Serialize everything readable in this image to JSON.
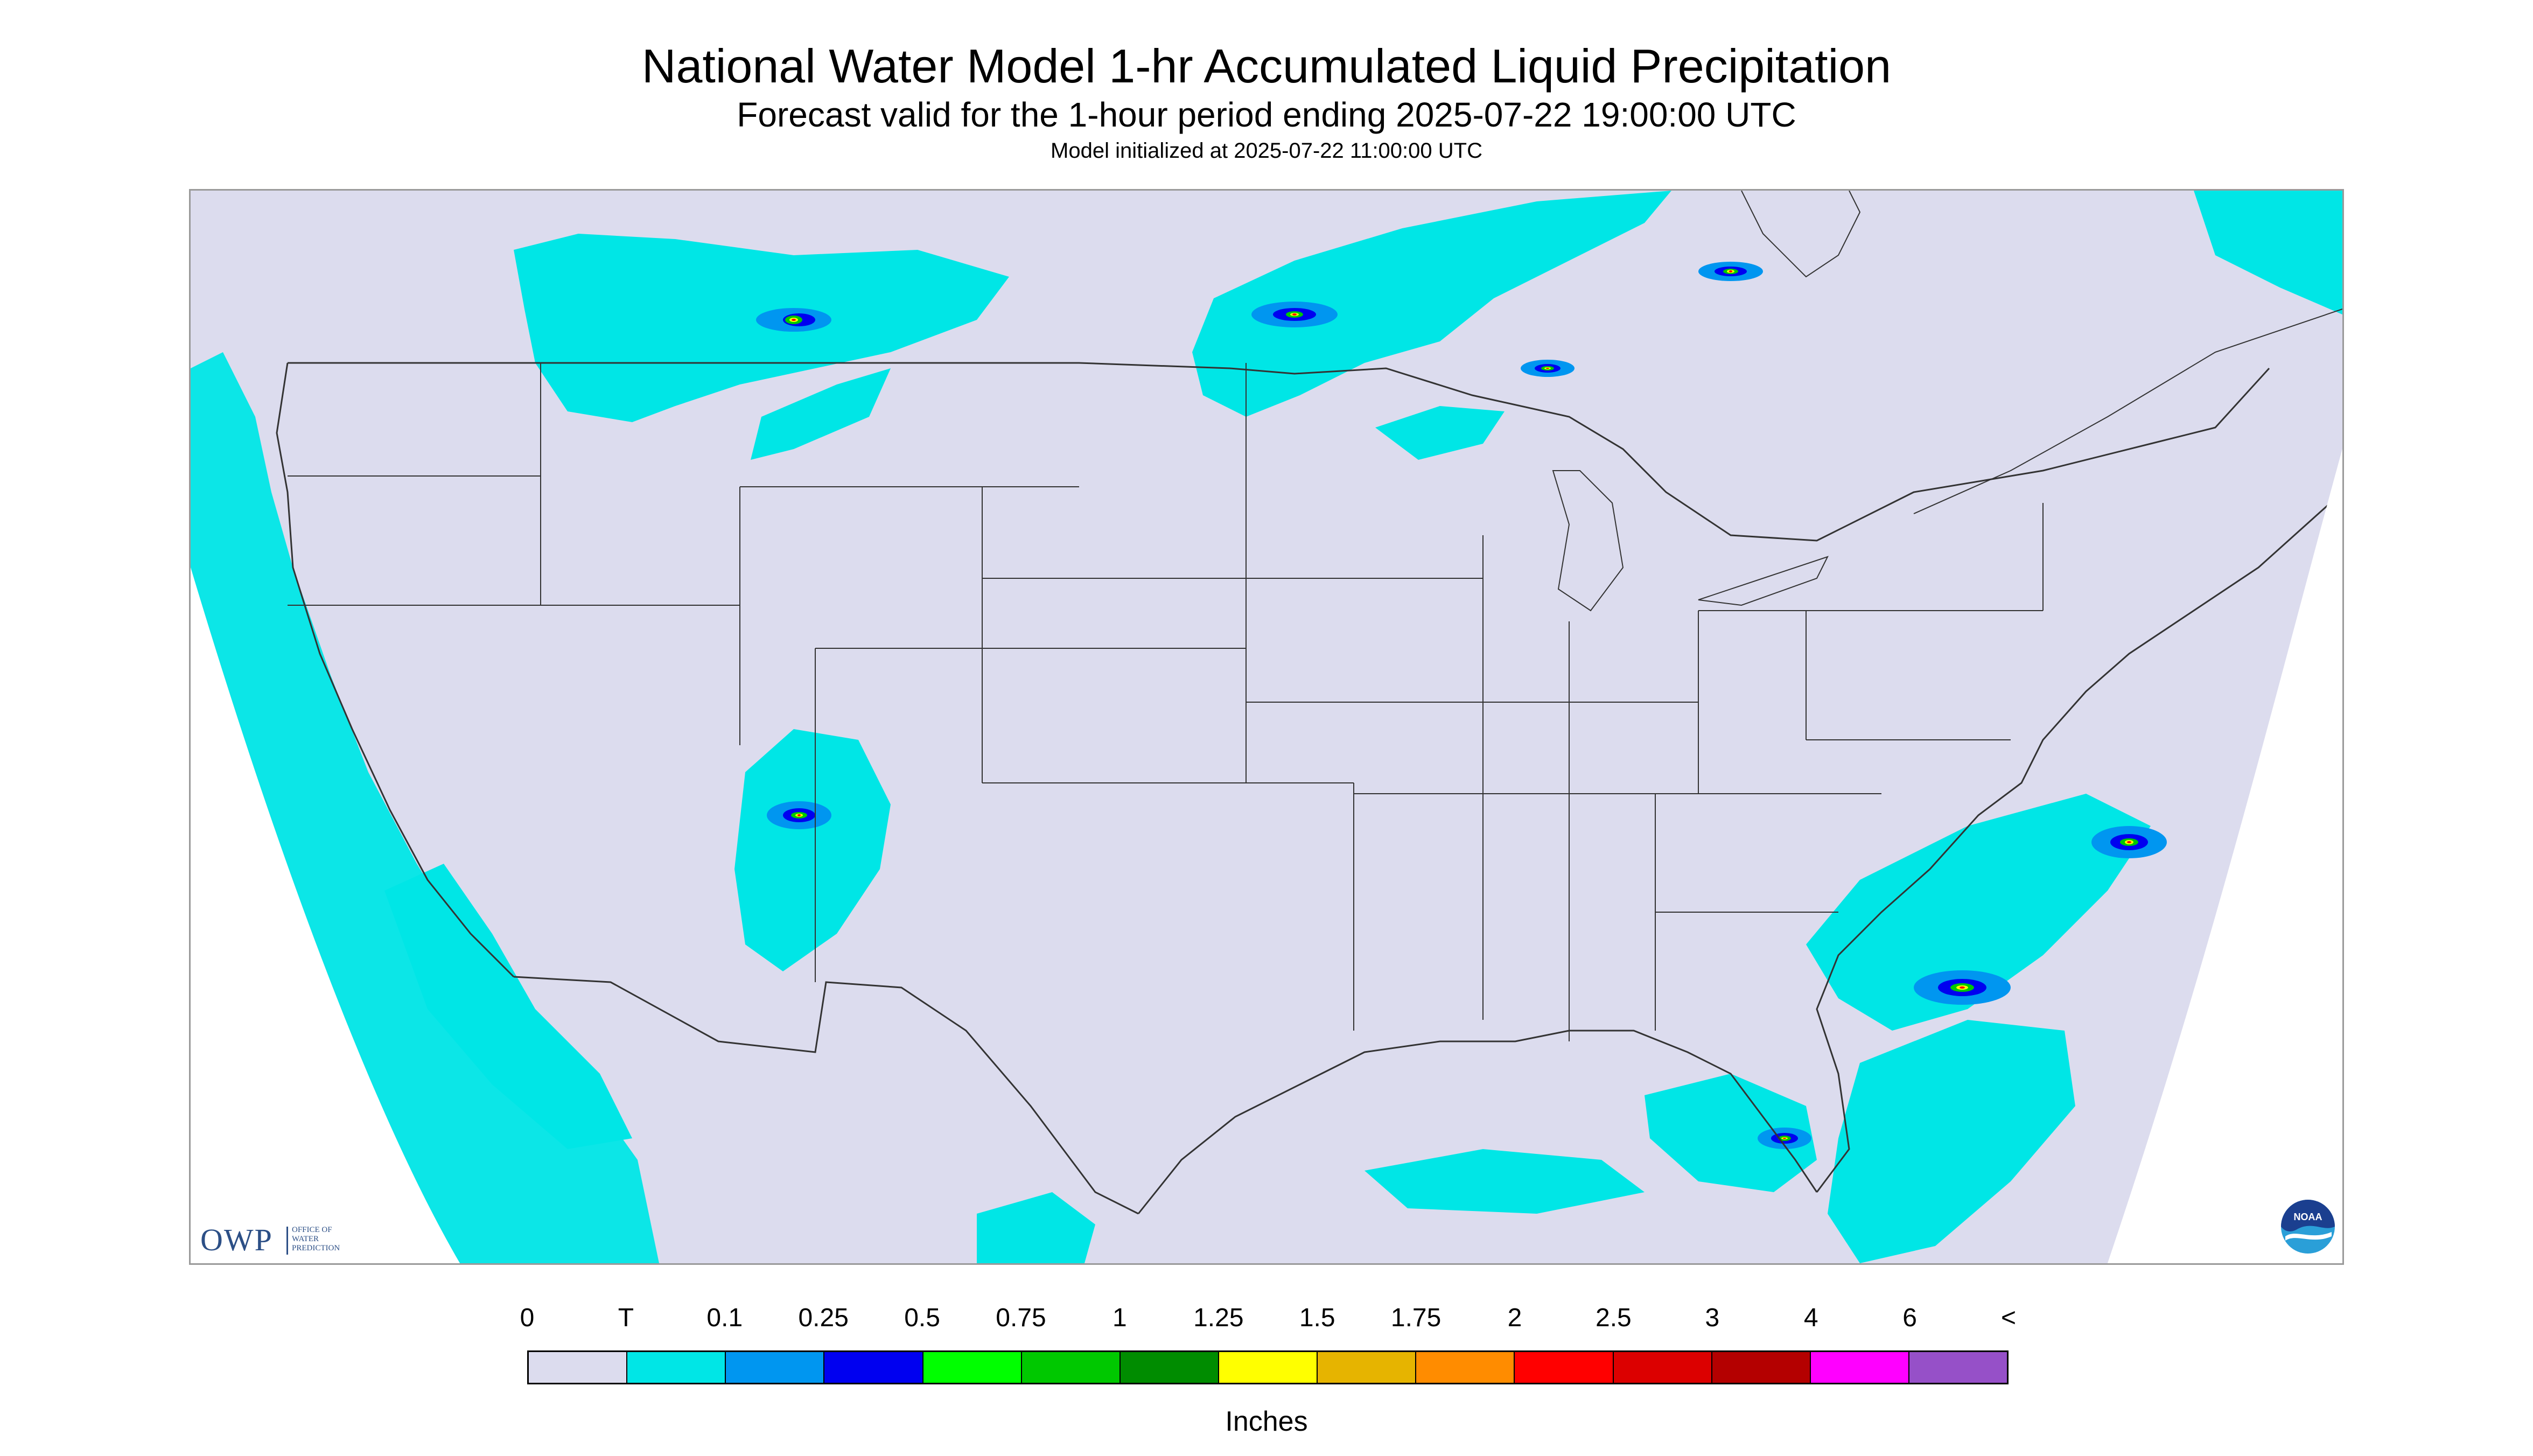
{
  "header": {
    "title": "National Water Model 1-hr Accumulated Liquid Precipitation",
    "subtitle": "Forecast valid for the 1-hour period ending 2025-07-22 19:00:00 UTC",
    "init_line": "Model initialized at 2025-07-22 11:00:00 UTC"
  },
  "map": {
    "background_color": "#dcdcee",
    "outside_color": "#ffffff",
    "border_color": "#333333"
  },
  "logos": {
    "owp": {
      "letters": "OWP",
      "subtext": "OFFICE OF\nWATER\nPREDICTION",
      "color": "#2c4f86"
    },
    "noaa": {
      "text": "NOAA",
      "color_top": "#1b3f8f",
      "color_bottom": "#2a9fd8"
    }
  },
  "legend": {
    "tick_labels": [
      "0",
      "T",
      "0.1",
      "0.25",
      "0.5",
      "0.75",
      "1",
      "1.25",
      "1.5",
      "1.75",
      "2",
      "2.5",
      "3",
      "4",
      "6",
      "<"
    ],
    "colors": [
      "#dcdcee",
      "#00e6e6",
      "#0096f0",
      "#0000f0",
      "#00ff00",
      "#00c800",
      "#008c00",
      "#ffff00",
      "#e6b400",
      "#ff8c00",
      "#ff0000",
      "#dc0000",
      "#b40000",
      "#ff00ff",
      "#9650c8"
    ],
    "units": "Inches"
  }
}
